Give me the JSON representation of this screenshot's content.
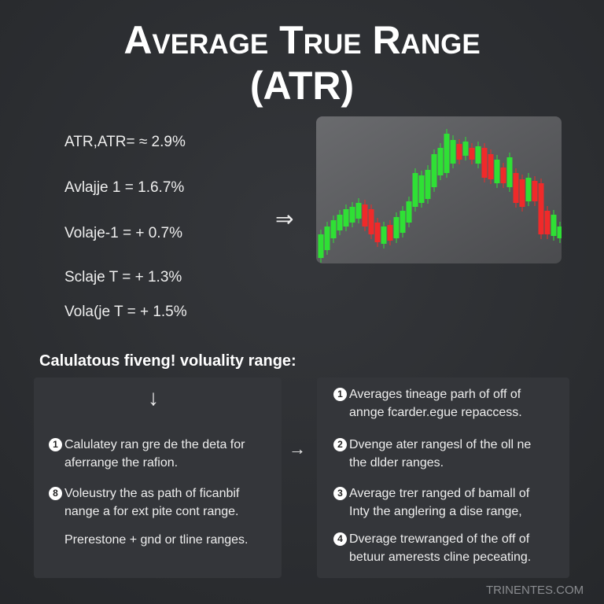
{
  "header": {
    "title": "Average True Range",
    "subtitle": "(ATR)"
  },
  "formulas": [
    "ATR,ATR= ≈ 2.9%",
    "Avlajje 1 = 1.6.7%",
    "Volaje-1 = + 0.7%",
    "Sclaje T = + 1.3%",
    "Vola(je T = + 1.5%"
  ],
  "section": {
    "heading": "Calulatous fiveng! voluality range:",
    "left": [
      {
        "number": "1",
        "lines": [
          "Calulatey ran gre de the deta for",
          "aferrange the rafion."
        ]
      },
      {
        "number": "8",
        "lines": [
          "Voleustry the as path of ficanbif",
          "nange a for ext pite cont range."
        ]
      },
      {
        "number": null,
        "lines": [
          "Prerestone + gnd or tline ranges."
        ]
      }
    ],
    "right": [
      {
        "number": "1",
        "lines": [
          "Averages tineage parh of off of",
          "annge fcarder.egue repaccess."
        ]
      },
      {
        "number": "2",
        "lines": [
          "Dvenge ater rangesl of the oll ne",
          "the dlder ranges."
        ]
      },
      {
        "number": "3",
        "lines": [
          "Average trer ranged of bamall of",
          "Inty the anglering a dise range,"
        ]
      },
      {
        "number": "4",
        "lines": [
          "Dverage trewranged of the off of",
          "betuur amerests cline peceating."
        ]
      }
    ]
  },
  "footer": {
    "watermark": "TRINENTES.COM"
  }
}
